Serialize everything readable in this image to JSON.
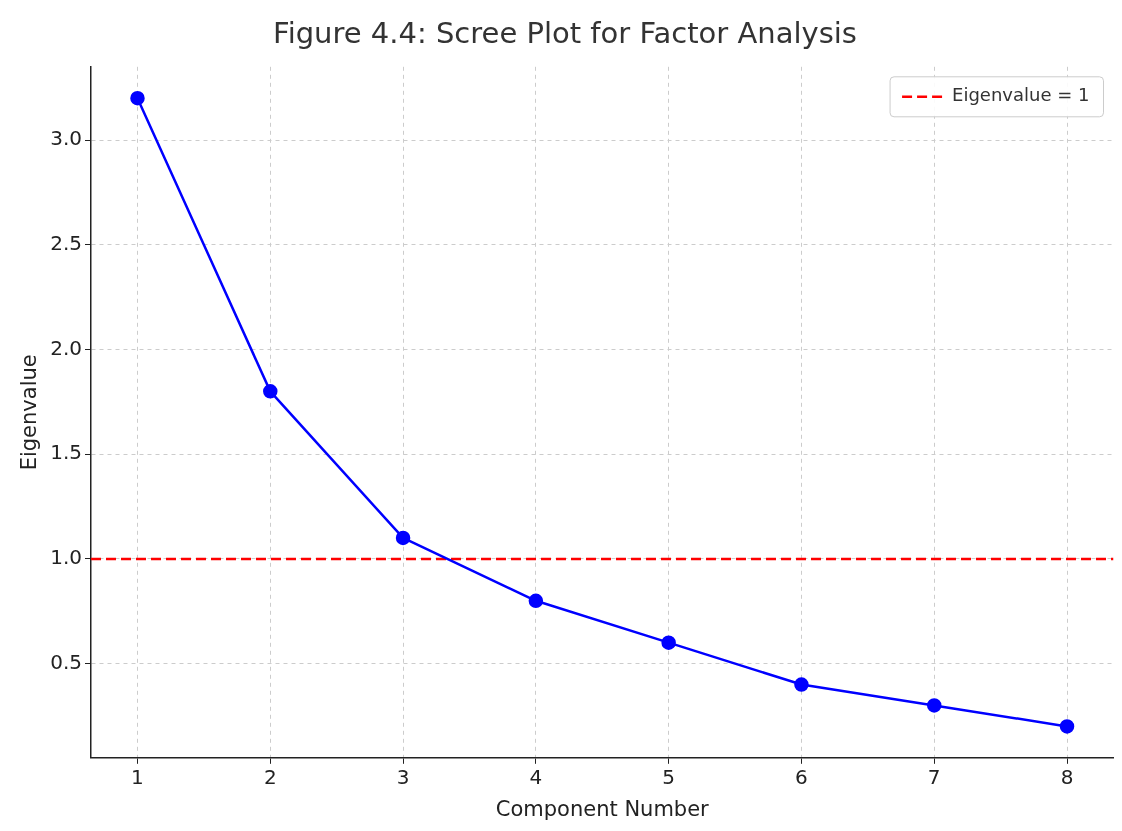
{
  "chart_data": {
    "type": "line",
    "title": "Figure 4.4: Scree Plot for Factor Analysis",
    "xlabel": "Component Number",
    "ylabel": "Eigenvalue",
    "x": [
      1,
      2,
      3,
      4,
      5,
      6,
      7,
      8
    ],
    "series": [
      {
        "color": "#0000ff",
        "values": [
          3.2,
          1.8,
          1.1,
          0.8,
          0.6,
          0.4,
          0.3,
          0.2
        ]
      }
    ],
    "xlim": [
      0.65,
      8.35
    ],
    "xticks": [
      1,
      2,
      3,
      4,
      5,
      6,
      7,
      8
    ],
    "ylim": [
      0.05,
      3.35
    ],
    "yticks": [
      0.5,
      {
        "value": 1,
        "label": "1.0"
      },
      1.5,
      {
        "value": 2,
        "label": "2.0"
      },
      2.5,
      {
        "value": 3,
        "label": "3.0"
      }
    ],
    "ref_lines": [
      {
        "axis": "y",
        "value": 1,
        "label": "Eigenvalue = 1",
        "color": "#ff0000",
        "line_style": "dashed"
      }
    ],
    "grid": true,
    "legend": "top right",
    "marker": "circle",
    "line_style": "solid"
  }
}
